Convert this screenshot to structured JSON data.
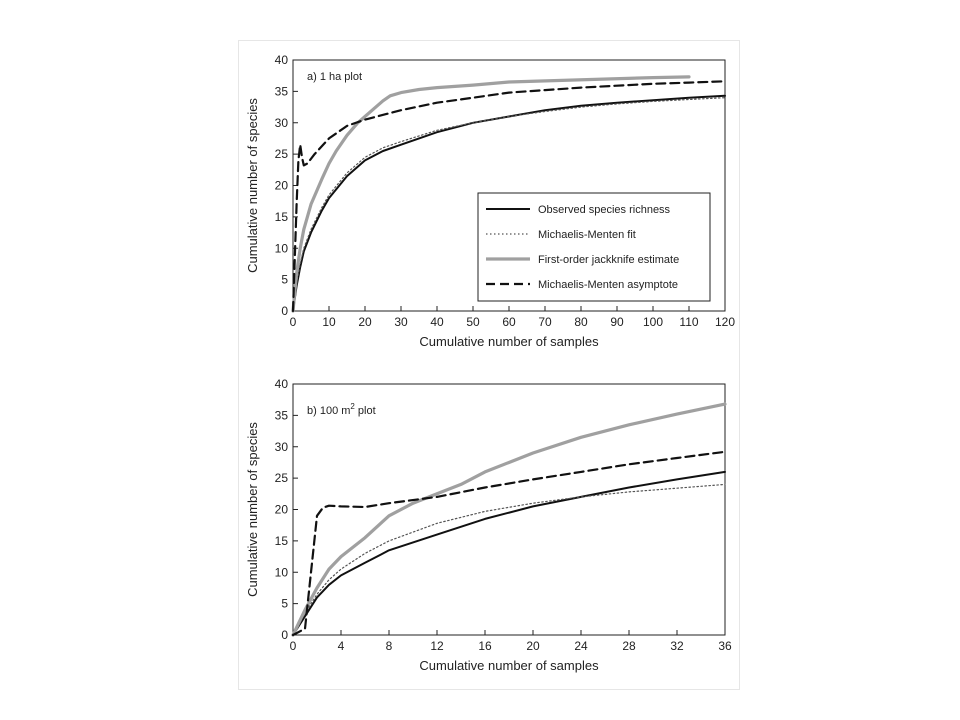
{
  "chart_data": [
    {
      "type": "line",
      "panel_label": "a) 1 ha plot",
      "xlabel": "Cumulative number of samples",
      "ylabel": "Cumulative number of species",
      "xlim": [
        0,
        120
      ],
      "ylim": [
        0,
        40
      ],
      "xticks": [
        0,
        10,
        20,
        30,
        40,
        50,
        60,
        70,
        80,
        90,
        100,
        110,
        120
      ],
      "yticks": [
        0,
        5,
        10,
        15,
        20,
        25,
        30,
        35,
        40
      ],
      "grid": false,
      "legend_position": "center-right",
      "series": [
        {
          "name": "Observed species richness",
          "style": "solid",
          "x": [
            0,
            1,
            2,
            3,
            5,
            8,
            10,
            15,
            20,
            25,
            30,
            40,
            50,
            60,
            70,
            80,
            90,
            100,
            110,
            120
          ],
          "y": [
            0,
            4,
            7,
            9.5,
            12.5,
            16,
            18,
            21.5,
            24,
            25.5,
            26.5,
            28.5,
            30,
            31,
            32,
            32.7,
            33.2,
            33.6,
            34,
            34.3
          ]
        },
        {
          "name": "Michaelis-Menten fit",
          "style": "dotted",
          "x": [
            0,
            1,
            2,
            3,
            5,
            8,
            10,
            15,
            20,
            25,
            30,
            40,
            50,
            60,
            70,
            80,
            90,
            100,
            110,
            120
          ],
          "y": [
            0,
            4.5,
            7.5,
            10,
            13,
            16.5,
            18.5,
            22,
            24.5,
            26,
            27,
            28.8,
            30,
            31,
            31.8,
            32.5,
            33,
            33.4,
            33.7,
            34
          ]
        },
        {
          "name": "First-order jackknife estimate",
          "style": "gray-thick",
          "x": [
            0,
            1,
            2,
            3,
            5,
            8,
            10,
            12,
            15,
            18,
            20,
            22,
            25,
            27,
            30,
            35,
            40,
            50,
            60,
            100,
            110
          ],
          "y": [
            0,
            6,
            10,
            13,
            17,
            21,
            23.5,
            25.5,
            28,
            30,
            31,
            32,
            33.5,
            34.3,
            34.8,
            35.3,
            35.6,
            36,
            36.5,
            37.2,
            37.3
          ]
        },
        {
          "name": "Michaelis-Menten asymptote",
          "style": "dashed",
          "x": [
            0,
            1,
            1.5,
            2,
            2.5,
            3,
            4,
            6,
            10,
            15,
            20,
            30,
            40,
            50,
            60,
            70,
            80,
            90,
            100,
            110,
            120
          ],
          "y": [
            0,
            17,
            24,
            26.5,
            24.5,
            23.2,
            23.5,
            25,
            27.5,
            29.5,
            30.5,
            32,
            33.2,
            34,
            34.8,
            35.2,
            35.6,
            35.9,
            36.2,
            36.4,
            36.6
          ]
        }
      ]
    },
    {
      "type": "line",
      "panel_label_prefix": "b) 100 m",
      "panel_label_sup": "2",
      "panel_label_suffix": " plot",
      "xlabel": "Cumulative number of samples",
      "ylabel": "Cumulative number of species",
      "xlim": [
        0,
        36
      ],
      "ylim": [
        0,
        40
      ],
      "xticks": [
        0,
        4,
        8,
        12,
        16,
        20,
        24,
        28,
        32,
        36
      ],
      "yticks": [
        0,
        5,
        10,
        15,
        20,
        25,
        30,
        35,
        40
      ],
      "grid": false,
      "series": [
        {
          "name": "Observed species richness",
          "style": "solid",
          "x": [
            0,
            1,
            2,
            3,
            4,
            6,
            8,
            12,
            16,
            20,
            24,
            28,
            32,
            36
          ],
          "y": [
            0,
            3,
            6,
            8,
            9.5,
            11.5,
            13.5,
            16,
            18.5,
            20.5,
            22,
            23.5,
            24.8,
            26
          ]
        },
        {
          "name": "Michaelis-Menten fit",
          "style": "dotted",
          "x": [
            0,
            1,
            2,
            3,
            4,
            6,
            8,
            12,
            16,
            20,
            24,
            28,
            32,
            36
          ],
          "y": [
            0,
            3.5,
            6.5,
            8.8,
            10.5,
            13,
            15,
            17.8,
            19.7,
            21,
            22,
            22.8,
            23.4,
            24
          ]
        },
        {
          "name": "First-order jackknife estimate",
          "style": "gray-thick",
          "x": [
            0,
            1,
            2,
            3,
            4,
            6,
            8,
            10,
            12,
            14,
            16,
            20,
            24,
            28,
            32,
            36
          ],
          "y": [
            0,
            4,
            7.5,
            10.5,
            12.5,
            15.5,
            19,
            21,
            22.5,
            24,
            26,
            29,
            31.5,
            33.5,
            35.2,
            36.8
          ]
        },
        {
          "name": "Michaelis-Menten asymptote",
          "style": "dashed",
          "x": [
            0,
            1,
            1.5,
            2,
            2.5,
            3,
            4,
            6,
            8,
            12,
            16,
            20,
            24,
            28,
            32,
            36
          ],
          "y": [
            0,
            1,
            10,
            19,
            20.3,
            20.6,
            20.5,
            20.4,
            21,
            22,
            23.5,
            24.8,
            26,
            27.2,
            28.2,
            29.2
          ]
        }
      ]
    }
  ],
  "colors": {
    "observed": "#111111",
    "fit": "#555555",
    "jackknife": "#a0a0a0",
    "asymptote": "#111111",
    "axis": "#222222"
  }
}
